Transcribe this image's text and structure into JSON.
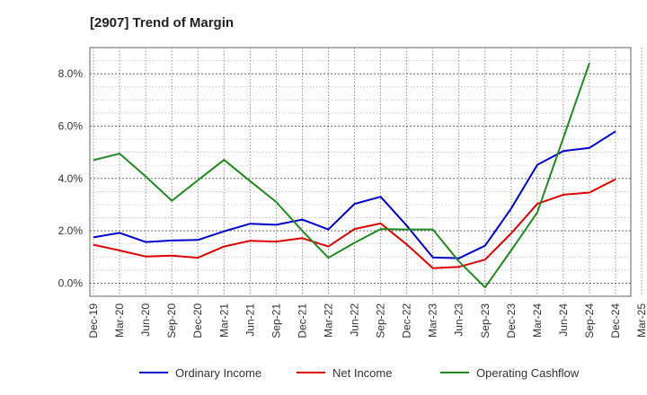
{
  "chart_data": {
    "type": "line",
    "title": "[2907]  Trend of Margin",
    "xlabel": "",
    "ylabel": "",
    "categories": [
      "Dec-19",
      "Mar-20",
      "Jun-20",
      "Sep-20",
      "Dec-20",
      "Mar-21",
      "Jun-21",
      "Sep-21",
      "Dec-21",
      "Mar-22",
      "Jun-22",
      "Sep-22",
      "Dec-22",
      "Mar-23",
      "Jun-23",
      "Sep-23",
      "Dec-23",
      "Mar-24",
      "Jun-24",
      "Sep-24",
      "Dec-24",
      "Mar-25"
    ],
    "y_ticks": [
      "0.0%",
      "2.0%",
      "4.0%",
      "6.0%",
      "8.0%"
    ],
    "ylim": [
      -0.5,
      9.0
    ],
    "grid": "dotted",
    "legend_position": "bottom",
    "series": [
      {
        "name": "Ordinary Income",
        "color": "#0000cc",
        "values": [
          1.75,
          1.92,
          1.57,
          1.63,
          1.65,
          1.98,
          2.27,
          2.23,
          2.43,
          2.05,
          3.03,
          3.3,
          2.2,
          0.98,
          0.95,
          1.43,
          2.85,
          4.52,
          5.05,
          5.17,
          5.8,
          null
        ]
      },
      {
        "name": "Net Income",
        "color": "#dd0000",
        "values": [
          1.47,
          1.25,
          1.02,
          1.05,
          0.97,
          1.4,
          1.62,
          1.59,
          1.72,
          1.4,
          2.07,
          2.28,
          1.48,
          0.57,
          0.62,
          0.9,
          1.9,
          3.03,
          3.38,
          3.46,
          3.97,
          null
        ]
      },
      {
        "name": "Operating Cashflow",
        "color": "#228822",
        "values": [
          4.7,
          4.95,
          4.08,
          3.15,
          3.93,
          4.71,
          3.9,
          3.1,
          2.0,
          0.97,
          1.54,
          2.07,
          2.05,
          2.05,
          0.83,
          -0.16,
          1.25,
          2.7,
          5.55,
          8.42,
          null,
          null
        ]
      }
    ]
  }
}
